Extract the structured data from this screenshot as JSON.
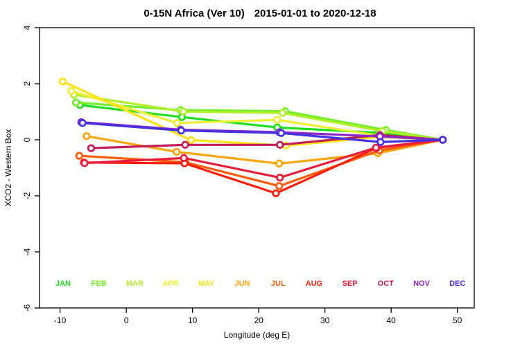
{
  "title": {
    "main": "0-15N Africa (Ver 10)",
    "dates": "2015-01-01 to 2020-12-18"
  },
  "axes": {
    "x": {
      "label": "Longitude (deg E)",
      "ticks": [
        -10,
        0,
        10,
        20,
        30,
        40,
        50
      ]
    },
    "y": {
      "label": "XCO2 - Western Box",
      "ticks": [
        4,
        2,
        0,
        -2,
        -4,
        -6
      ]
    }
  },
  "chart_data": {
    "type": "line",
    "title": "0-15N Africa (Ver 10)   2015-01-01 to 2020-12-18",
    "xlabel": "Longitude (deg E)",
    "ylabel": "XCO2 - Western Box",
    "xlim": [
      -13.1,
      52.55
    ],
    "ylim": [
      -6,
      4
    ],
    "grid": false,
    "legend_position": "inside-bottom-row",
    "marker": "open-circle",
    "series": [
      {
        "name": "JAN",
        "color": "#1ddf1d",
        "points": [
          [
            -7.0,
            1.24
          ],
          [
            8.4,
            0.81
          ],
          [
            22.8,
            0.44
          ],
          [
            38.1,
            0.25
          ],
          [
            47.8,
            0.0
          ]
        ]
      },
      {
        "name": "FEB",
        "color": "#74ee2c",
        "points": [
          [
            -7.6,
            1.33
          ],
          [
            8.2,
            1.06
          ],
          [
            24.0,
            1.02
          ],
          [
            39.2,
            0.35
          ],
          [
            47.8,
            0.0
          ]
        ]
      },
      {
        "name": "MAR",
        "color": "#b2ee2c",
        "points": [
          [
            -7.9,
            1.61
          ],
          [
            8.6,
            1.01
          ],
          [
            23.6,
            0.96
          ],
          [
            38.7,
            0.31
          ],
          [
            47.8,
            0.0
          ]
        ]
      },
      {
        "name": "APR",
        "color": "#eeee33",
        "points": [
          [
            -8.3,
            1.74
          ],
          [
            7.7,
            0.6
          ],
          [
            22.8,
            0.71
          ],
          [
            38.2,
            0.15
          ],
          [
            47.8,
            0.0
          ]
        ]
      },
      {
        "name": "MAY",
        "color": "#ffe214",
        "points": [
          [
            -9.6,
            2.08
          ],
          [
            9.8,
            -0.01
          ],
          [
            24.1,
            -0.21
          ],
          [
            38.3,
            0.1
          ],
          [
            47.8,
            0.0
          ]
        ]
      },
      {
        "name": "JUN",
        "color": "#ffa405",
        "points": [
          [
            -6.0,
            0.13
          ],
          [
            7.6,
            -0.43
          ],
          [
            23.1,
            -0.85
          ],
          [
            38.0,
            -0.48
          ],
          [
            47.8,
            0.0
          ]
        ]
      },
      {
        "name": "JUL",
        "color": "#ff5c0a",
        "points": [
          [
            -7.1,
            -0.57
          ],
          [
            8.9,
            -0.8
          ],
          [
            23.1,
            -1.65
          ],
          [
            38.2,
            -0.38
          ],
          [
            47.8,
            0.0
          ]
        ]
      },
      {
        "name": "AUG",
        "color": "#ff1e0a",
        "points": [
          [
            -6.4,
            -0.81
          ],
          [
            8.8,
            -0.84
          ],
          [
            22.6,
            -1.91
          ],
          [
            37.8,
            -0.29
          ],
          [
            47.8,
            0.0
          ]
        ]
      },
      {
        "name": "SEP",
        "color": "#e61e3c",
        "points": [
          [
            -6.3,
            -0.83
          ],
          [
            8.7,
            -0.65
          ],
          [
            23.2,
            -1.35
          ],
          [
            37.7,
            -0.28
          ],
          [
            47.8,
            0.0
          ]
        ]
      },
      {
        "name": "OCT",
        "color": "#c01e5a",
        "points": [
          [
            -5.3,
            -0.3
          ],
          [
            8.9,
            -0.18
          ],
          [
            23.2,
            -0.18
          ],
          [
            38.3,
            0.17
          ],
          [
            47.8,
            0.0
          ]
        ]
      },
      {
        "name": "NOV",
        "color": "#8c28c8",
        "points": [
          [
            -6.8,
            0.63
          ],
          [
            8.2,
            0.36
          ],
          [
            23.1,
            0.27
          ],
          [
            38.3,
            0.12
          ],
          [
            47.8,
            0.0
          ]
        ]
      },
      {
        "name": "DEC",
        "color": "#4632dc",
        "points": [
          [
            -6.6,
            0.6
          ],
          [
            8.3,
            0.33
          ],
          [
            23.4,
            0.24
          ],
          [
            38.4,
            -0.08
          ],
          [
            47.8,
            0.0
          ]
        ]
      }
    ]
  },
  "month_legend": [
    {
      "label": "JAN",
      "color": "#1ddf1d"
    },
    {
      "label": "FEB",
      "color": "#74ee2c"
    },
    {
      "label": "MAR",
      "color": "#b2ee2c"
    },
    {
      "label": "APR",
      "color": "#eeee33"
    },
    {
      "label": "MAY",
      "color": "#ffe214"
    },
    {
      "label": "JUN",
      "color": "#ffa405"
    },
    {
      "label": "JUL",
      "color": "#ff5c0a"
    },
    {
      "label": "AUG",
      "color": "#ff1e0a"
    },
    {
      "label": "SEP",
      "color": "#e61e3c"
    },
    {
      "label": "OCT",
      "color": "#c01e5a"
    },
    {
      "label": "NOV",
      "color": "#8c28c8"
    },
    {
      "label": "DEC",
      "color": "#4632dc"
    }
  ],
  "colors": {
    "axis": "#000000",
    "background": "#ffffff",
    "title_text": "#000000"
  }
}
